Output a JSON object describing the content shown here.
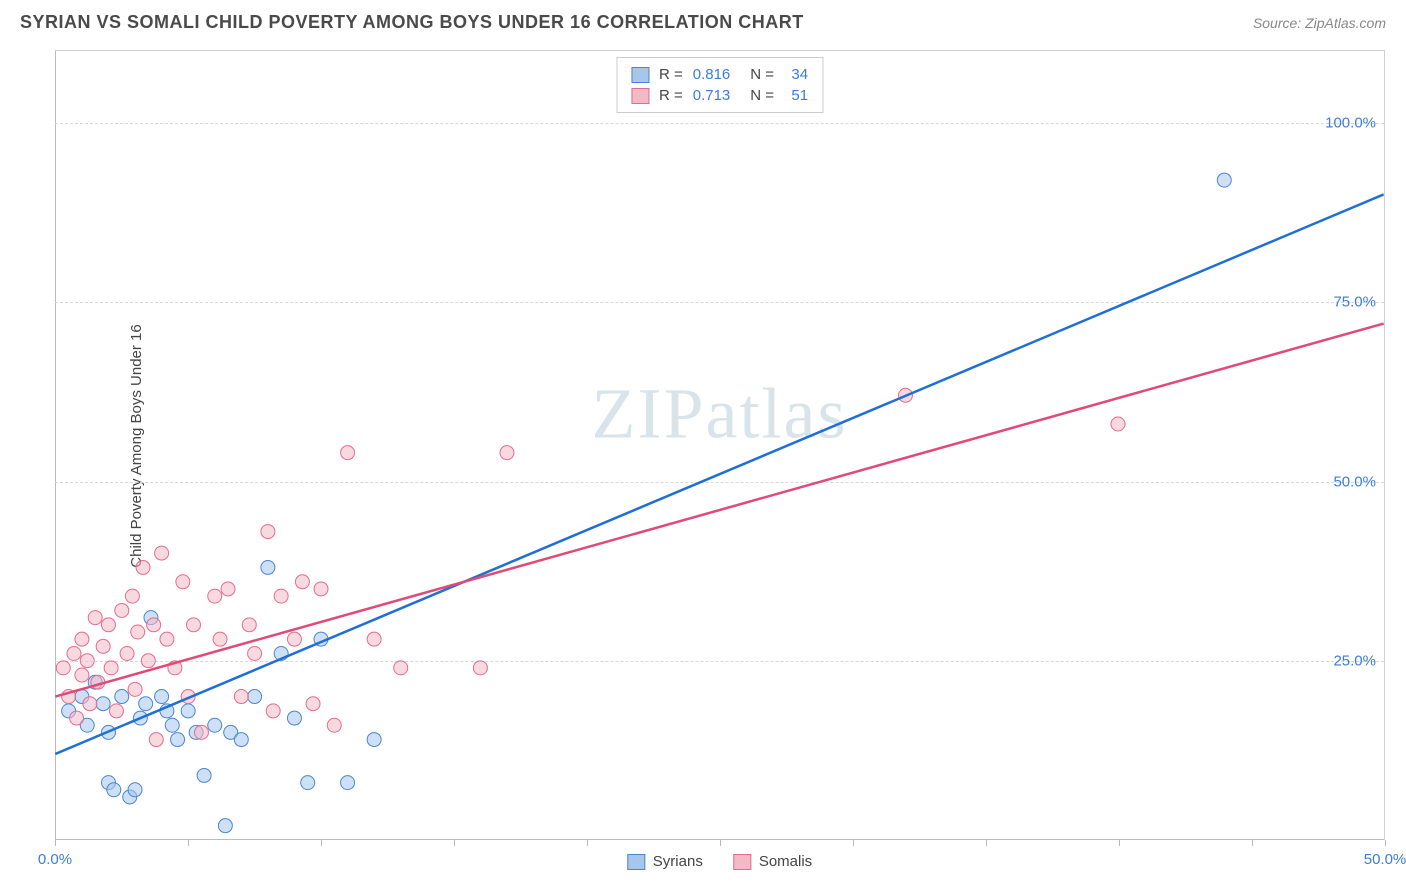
{
  "header": {
    "title": "SYRIAN VS SOMALI CHILD POVERTY AMONG BOYS UNDER 16 CORRELATION CHART",
    "source": "Source: ZipAtlas.com"
  },
  "chart": {
    "type": "scatter",
    "y_axis_label": "Child Poverty Among Boys Under 16",
    "watermark": "ZIPatlas",
    "xlim": [
      0,
      50
    ],
    "ylim": [
      0,
      110
    ],
    "x_ticks": [
      0,
      5,
      10,
      15,
      20,
      25,
      30,
      35,
      40,
      45,
      50
    ],
    "x_tick_labels": {
      "0": "0.0%",
      "50": "50.0%"
    },
    "y_ticks": [
      25,
      50,
      75,
      100
    ],
    "y_tick_labels": {
      "25": "25.0%",
      "50": "50.0%",
      "75": "75.0%",
      "100": "100.0%"
    },
    "grid_color": "#d8d8d8",
    "background_color": "#ffffff",
    "marker_radius": 7,
    "marker_opacity": 0.55,
    "series": [
      {
        "name": "Syrians",
        "fill_color": "#a6c6ec",
        "stroke_color": "#4a86d0",
        "line_color": "#1f6fd4",
        "line_width": 2.5,
        "trend": {
          "x1": 0,
          "y1": 12,
          "x2": 50,
          "y2": 90
        },
        "R": "0.816",
        "N": "34",
        "points": [
          [
            0.5,
            18
          ],
          [
            1,
            20
          ],
          [
            1.2,
            16
          ],
          [
            1.5,
            22
          ],
          [
            1.8,
            19
          ],
          [
            2,
            15
          ],
          [
            2,
            8
          ],
          [
            2.2,
            7
          ],
          [
            2.5,
            20
          ],
          [
            2.8,
            6
          ],
          [
            3,
            7
          ],
          [
            3.2,
            17
          ],
          [
            3.4,
            19
          ],
          [
            3.6,
            31
          ],
          [
            4,
            20
          ],
          [
            4.2,
            18
          ],
          [
            4.4,
            16
          ],
          [
            4.6,
            14
          ],
          [
            5,
            18
          ],
          [
            5.3,
            15
          ],
          [
            5.6,
            9
          ],
          [
            6,
            16
          ],
          [
            6.4,
            2
          ],
          [
            6.6,
            15
          ],
          [
            7,
            14
          ],
          [
            7.5,
            20
          ],
          [
            8,
            38
          ],
          [
            8.5,
            26
          ],
          [
            9,
            17
          ],
          [
            9.5,
            8
          ],
          [
            10,
            28
          ],
          [
            11,
            8
          ],
          [
            12,
            14
          ],
          [
            44,
            92
          ]
        ]
      },
      {
        "name": "Somalis",
        "fill_color": "#f3b9c7",
        "stroke_color": "#e76a8f",
        "line_color": "#e14a77",
        "line_width": 2.5,
        "trend": {
          "x1": 0,
          "y1": 20,
          "x2": 50,
          "y2": 72
        },
        "R": "0.713",
        "N": "51",
        "points": [
          [
            0.3,
            24
          ],
          [
            0.5,
            20
          ],
          [
            0.7,
            26
          ],
          [
            0.8,
            17
          ],
          [
            1,
            28
          ],
          [
            1,
            23
          ],
          [
            1.2,
            25
          ],
          [
            1.3,
            19
          ],
          [
            1.5,
            31
          ],
          [
            1.6,
            22
          ],
          [
            1.8,
            27
          ],
          [
            2,
            30
          ],
          [
            2.1,
            24
          ],
          [
            2.3,
            18
          ],
          [
            2.5,
            32
          ],
          [
            2.7,
            26
          ],
          [
            2.9,
            34
          ],
          [
            3,
            21
          ],
          [
            3.1,
            29
          ],
          [
            3.3,
            38
          ],
          [
            3.5,
            25
          ],
          [
            3.7,
            30
          ],
          [
            4,
            40
          ],
          [
            4.2,
            28
          ],
          [
            4.5,
            24
          ],
          [
            4.8,
            36
          ],
          [
            5,
            20
          ],
          [
            5.2,
            30
          ],
          [
            5.5,
            15
          ],
          [
            6,
            34
          ],
          [
            6.2,
            28
          ],
          [
            6.5,
            35
          ],
          [
            7,
            20
          ],
          [
            7.3,
            30
          ],
          [
            7.5,
            26
          ],
          [
            8,
            43
          ],
          [
            8.2,
            18
          ],
          [
            8.5,
            34
          ],
          [
            9,
            28
          ],
          [
            9.3,
            36
          ],
          [
            9.7,
            19
          ],
          [
            10,
            35
          ],
          [
            10.5,
            16
          ],
          [
            11,
            54
          ],
          [
            12,
            28
          ],
          [
            13,
            24
          ],
          [
            16,
            24
          ],
          [
            17,
            54
          ],
          [
            32,
            62
          ],
          [
            40,
            58
          ],
          [
            3.8,
            14
          ]
        ]
      }
    ],
    "legend_top": {
      "rows": [
        {
          "swatch_fill": "#a6c6ec",
          "swatch_border": "#4a86d0",
          "r_label": "R =",
          "r_val": "0.816",
          "n_label": "N =",
          "n_val": "34"
        },
        {
          "swatch_fill": "#f3b9c7",
          "swatch_border": "#e76a8f",
          "r_label": "R =",
          "r_val": "0.713",
          "n_label": "N =",
          "n_val": "51"
        }
      ]
    },
    "legend_bottom": [
      {
        "swatch_fill": "#a6c6ec",
        "swatch_border": "#4a86d0",
        "label": "Syrians"
      },
      {
        "swatch_fill": "#f3b9c7",
        "swatch_border": "#e76a8f",
        "label": "Somalis"
      }
    ]
  }
}
